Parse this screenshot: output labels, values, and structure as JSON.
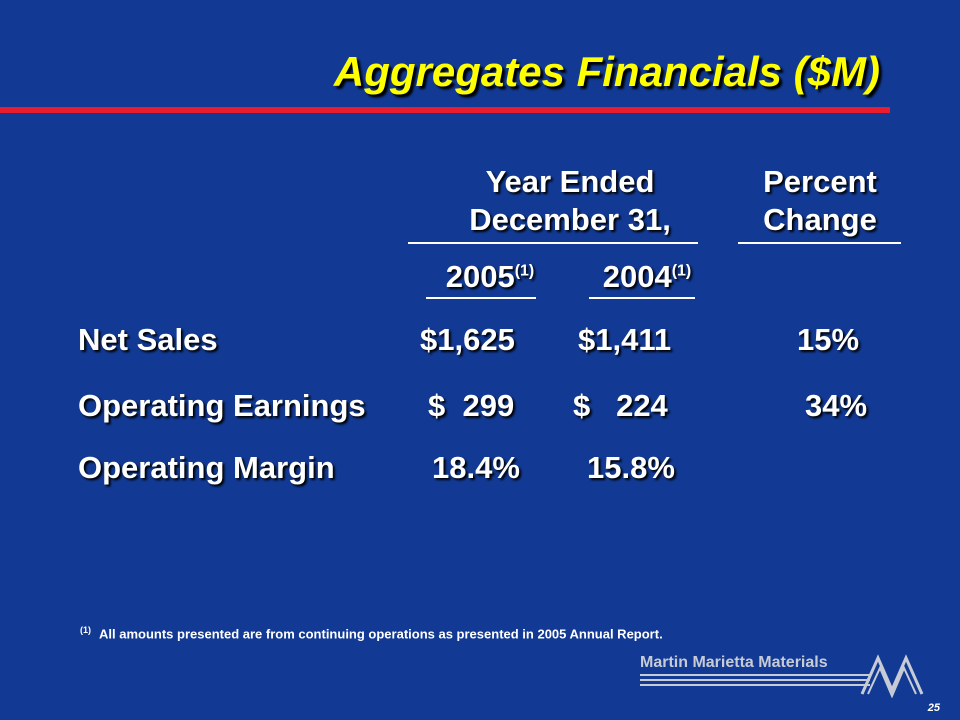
{
  "slide": {
    "title": "Aggregates Financials ($M)",
    "header_year_ended_1": "Year Ended",
    "header_year_ended_2": "December 31,",
    "header_percent_1": "Percent",
    "header_percent_2": "Change",
    "year_2005": "2005",
    "year_2004": "2004",
    "footnote_marker": "(1)"
  },
  "rows": [
    {
      "label": "Net Sales",
      "v2005": "$1,625",
      "v2004": "$1,411",
      "change": "15%"
    },
    {
      "label": "Operating Earnings",
      "v2005": "$  299",
      "v2004": "$   224",
      "change": "34%"
    },
    {
      "label": "Operating Margin",
      "v2005": "18.4%",
      "v2004": "15.8%",
      "change": ""
    }
  ],
  "footnote": {
    "marker": "(1)",
    "text": "All amounts presented are from continuing operations as presented in 2005 Annual Report."
  },
  "branding": {
    "company": "Martin Marietta Materials",
    "page_number": "25"
  },
  "colors": {
    "background": "#123a94",
    "title": "#ffff00",
    "title_rule": "#e81c2c",
    "text": "#ffffff",
    "logo": "#c7cbd6"
  }
}
